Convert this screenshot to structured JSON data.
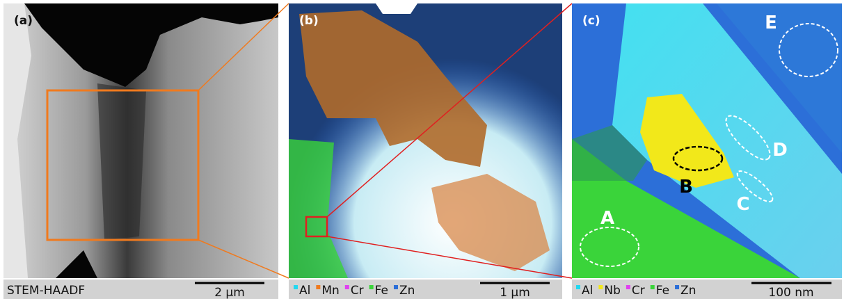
{
  "panels": [
    {
      "label": "(a)",
      "caption": "STEM-HAADF",
      "scale_bar": "2 µm"
    },
    {
      "label": "(b)",
      "legend": [
        {
          "name": "Al",
          "color": "#22d8f0"
        },
        {
          "name": "Mn",
          "color": "#f07a1e"
        },
        {
          "name": "Cr",
          "color": "#e040f0"
        },
        {
          "name": "Fe",
          "color": "#3ad43a"
        },
        {
          "name": "Zn",
          "color": "#2c6fd8"
        }
      ],
      "scale_bar": "1 µm"
    },
    {
      "label": "(c)",
      "legend": [
        {
          "name": "Al",
          "color": "#22d8f0"
        },
        {
          "name": "Nb",
          "color": "#f2e81a"
        },
        {
          "name": "Cr",
          "color": "#e040f0"
        },
        {
          "name": "Fe",
          "color": "#3ad43a"
        },
        {
          "name": "Zn",
          "color": "#2c6fd8"
        }
      ],
      "scale_bar": "100 nm",
      "regions": [
        "A",
        "B",
        "C",
        "D",
        "E"
      ]
    }
  ]
}
